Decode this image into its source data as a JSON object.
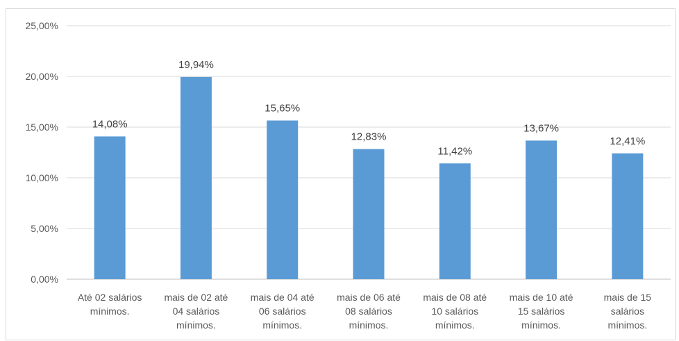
{
  "chart_data": {
    "type": "bar",
    "categories": [
      [
        "Até 02 salários",
        "mínimos."
      ],
      [
        "mais de 02 até",
        "04 salários",
        "mínimos."
      ],
      [
        "mais de 04 até",
        "06 salários",
        "mínimos."
      ],
      [
        "mais de 06 até",
        "08 salários",
        "mínimos."
      ],
      [
        "mais de 08 até",
        "10 salários",
        "mínimos."
      ],
      [
        "mais de 10 até",
        "15 salários",
        "mínimos."
      ],
      [
        "mais de 15",
        "salários",
        "mínimos."
      ]
    ],
    "values": [
      14.08,
      19.94,
      15.65,
      12.83,
      11.42,
      13.67,
      12.41
    ],
    "data_labels": [
      "14,08%",
      "19,94%",
      "15,65%",
      "12,83%",
      "11,42%",
      "13,67%",
      "12,41%"
    ],
    "yticks": [
      0,
      5,
      10,
      15,
      20,
      25
    ],
    "ytick_labels": [
      "0,00%",
      "5,00%",
      "10,00%",
      "15,00%",
      "20,00%",
      "25,00%"
    ],
    "ylim": [
      0,
      25
    ],
    "grid": true,
    "legend": "none",
    "colors": {
      "bar": "#5b9bd5",
      "grid": "#d9d9d9",
      "axis": "#bfbfbf"
    }
  }
}
